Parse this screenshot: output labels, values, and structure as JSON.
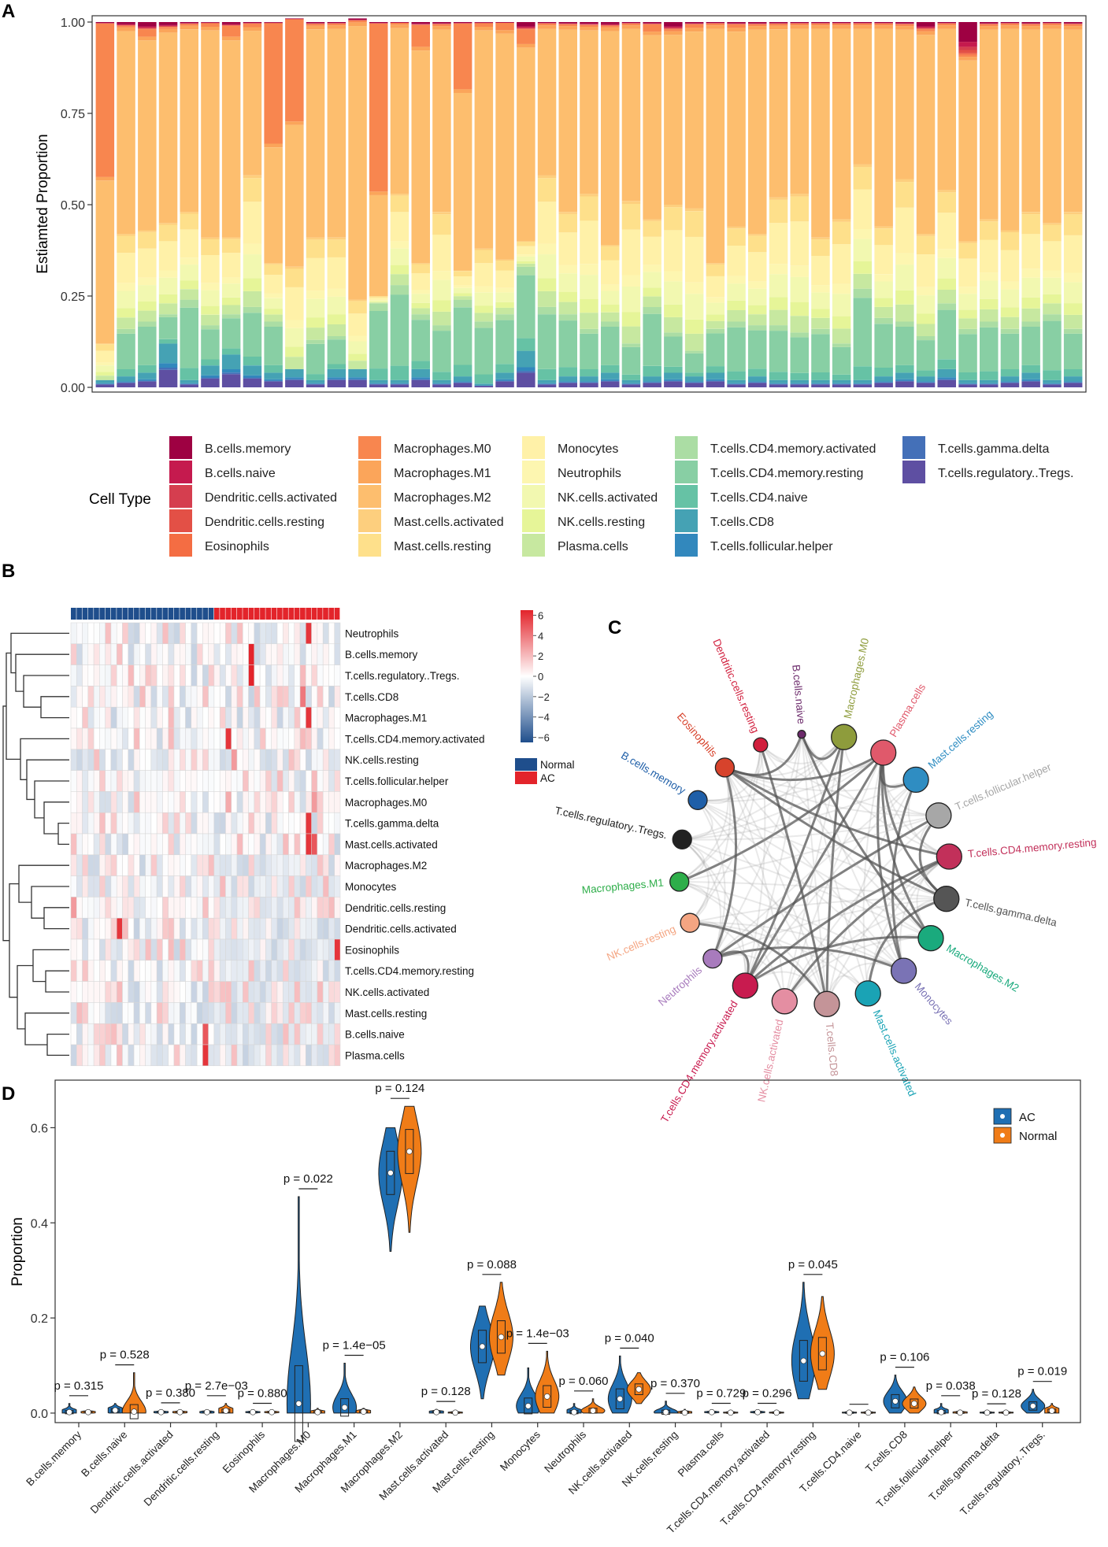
{
  "panel_labels": {
    "a": "A",
    "b": "B",
    "c": "C",
    "d": "D"
  },
  "chart_data": [
    {
      "panel": "A",
      "type": "stacked_bar",
      "ylabel": "Estiamted Proportion",
      "ylim": [
        0,
        1
      ],
      "yticks": [
        "0.00",
        "0.25",
        "0.50",
        "0.75",
        "1.00"
      ],
      "n_samples": 47,
      "legend_title": "Cell Type",
      "cell_types": [
        "B.cells.memory",
        "B.cells.naive",
        "Dendritic.cells.activated",
        "Dendritic.cells.resting",
        "Eosinophils",
        "Macrophages.M0",
        "Macrophages.M1",
        "Macrophages.M2",
        "Mast.cells.activated",
        "Mast.cells.resting",
        "Monocytes",
        "Neutrophils",
        "NK.cells.activated",
        "NK.cells.resting",
        "Plasma.cells",
        "T.cells.CD4.memory.activated",
        "T.cells.CD4.memory.resting",
        "T.cells.CD4.naive",
        "T.cells.CD8",
        "T.cells.follicular.helper",
        "T.cells.gamma.delta",
        "T.cells.regulatory..Tregs."
      ],
      "colors": [
        "#9e0142",
        "#c51a4e",
        "#d53e4f",
        "#e35046",
        "#f46d43",
        "#f8864f",
        "#fba55a",
        "#fdbe6e",
        "#fdcf7e",
        "#fee08b",
        "#fff1a8",
        "#fdf6b0",
        "#f2f8b0",
        "#e6f598",
        "#c7e8a0",
        "#abdda4",
        "#88cfa4",
        "#66c2a5",
        "#45a2b4",
        "#3288bd",
        "#4470b8",
        "#5e4fa2"
      ],
      "profile": {
        "top": [
          0.004,
          0.01,
          0.02,
          0.014,
          0.005,
          0.003,
          0.01,
          0.004,
          0.003,
          0.002,
          0.005,
          0.004,
          0.006,
          0.004,
          0.002,
          0.008,
          0.006,
          0.004,
          0.003,
          0.002,
          0.02,
          0.004,
          0.006,
          0.008,
          0.01,
          0.004,
          0.006,
          0.02,
          0.006,
          0.004,
          0.006,
          0.006,
          0.005,
          0.004,
          0.004,
          0.004,
          0.004,
          0.004,
          0.006,
          0.02,
          0.004,
          0.09,
          0.006,
          0.004,
          0.006,
          0.004,
          0.006
        ],
        "m0": [
          0.42,
          0.005,
          0.02,
          0.005,
          0.005,
          0.01,
          0.03,
          0.01,
          0.33,
          0.28,
          0.005,
          0.005,
          0.005,
          0.46,
          0.005,
          0.06,
          0.005,
          0.18,
          0.01,
          0.02,
          0.04,
          0.005,
          0.005,
          0.005,
          0.005,
          0.005,
          0.02,
          0.005,
          0.01,
          0.005,
          0.01,
          0.005,
          0.005,
          0.005,
          0.005,
          0.005,
          0.005,
          0.005,
          0.005,
          0.005,
          0.005,
          0.005,
          0.005,
          0.005,
          0.005,
          0.005,
          0.005
        ],
        "m2_end": [
          0.12,
          0.42,
          0.43,
          0.45,
          0.48,
          0.41,
          0.41,
          0.58,
          0.34,
          0.32,
          0.41,
          0.41,
          0.23,
          0.07,
          0.53,
          0.34,
          0.48,
          0.32,
          0.38,
          0.35,
          0.4,
          0.58,
          0.48,
          0.53,
          0.39,
          0.51,
          0.46,
          0.5,
          0.49,
          0.34,
          0.44,
          0.42,
          0.52,
          0.53,
          0.41,
          0.46,
          0.61,
          0.44,
          0.57,
          0.42,
          0.54,
          0.4,
          0.46,
          0.43,
          0.48,
          0.45,
          0.48
        ],
        "grn": [
          0.02,
          0.16,
          0.18,
          0.2,
          0.24,
          0.17,
          0.2,
          0.22,
          0.18,
          0.04,
          0.13,
          0.14,
          0.04,
          0.23,
          0.28,
          0.2,
          0.17,
          0.24,
          0.18,
          0.2,
          0.33,
          0.22,
          0.2,
          0.16,
          0.18,
          0.12,
          0.22,
          0.15,
          0.1,
          0.16,
          0.18,
          0.17,
          0.17,
          0.15,
          0.16,
          0.12,
          0.27,
          0.19,
          0.18,
          0.14,
          0.23,
          0.16,
          0.18,
          0.16,
          0.18,
          0.2,
          0.16
        ],
        "blue": [
          0.02,
          0.03,
          0.04,
          0.12,
          0.02,
          0.06,
          0.09,
          0.06,
          0.04,
          0.05,
          0.02,
          0.05,
          0.05,
          0.02,
          0.02,
          0.05,
          0.02,
          0.03,
          0.01,
          0.04,
          0.1,
          0.02,
          0.03,
          0.03,
          0.04,
          0.02,
          0.03,
          0.04,
          0.03,
          0.04,
          0.02,
          0.03,
          0.02,
          0.02,
          0.02,
          0.02,
          0.02,
          0.03,
          0.04,
          0.03,
          0.05,
          0.02,
          0.02,
          0.03,
          0.04,
          0.02,
          0.03
        ]
      }
    },
    {
      "panel": "B",
      "type": "heatmap",
      "rows": [
        "Neutrophils",
        "B.cells.memory",
        "T.cells.regulatory..Tregs.",
        "T.cells.CD8",
        "Macrophages.M1",
        "T.cells.CD4.memory.activated",
        "NK.cells.resting",
        "T.cells.follicular.helper",
        "Macrophages.M0",
        "T.cells.gamma.delta",
        "Mast.cells.activated",
        "Macrophages.M2",
        "Monocytes",
        "Dendritic.cells.resting",
        "Dendritic.cells.activated",
        "Eosinophils",
        "T.cells.CD4.memory.resting",
        "NK.cells.activated",
        "Mast.cells.resting",
        "B.cells.naive",
        "Plasma.cells"
      ],
      "n_cols": 47,
      "n_normal": 25,
      "scale_ticks": [
        "6",
        "4",
        "2",
        "0",
        "−2",
        "−4",
        "−6"
      ],
      "scale_range": [
        -6.5,
        6.5
      ],
      "groups": [
        {
          "name": "Normal",
          "color": "#1f4e8c"
        },
        {
          "name": "AC",
          "color": "#e3242b"
        }
      ],
      "hot_cells": [
        [
          0,
          41,
          6
        ],
        [
          1,
          31,
          7
        ],
        [
          2,
          31,
          7
        ],
        [
          3,
          40,
          4
        ],
        [
          4,
          41,
          6
        ],
        [
          5,
          27,
          6
        ],
        [
          6,
          28,
          3
        ],
        [
          8,
          27,
          2.5
        ],
        [
          8,
          42,
          3
        ],
        [
          9,
          41,
          6
        ],
        [
          10,
          41,
          6
        ],
        [
          10,
          42,
          5
        ],
        [
          13,
          0,
          3
        ],
        [
          14,
          8,
          6
        ],
        [
          15,
          46,
          6
        ],
        [
          19,
          23,
          5
        ],
        [
          20,
          23,
          6
        ]
      ]
    },
    {
      "panel": "C",
      "type": "network",
      "nodes": [
        {
          "name": "Macrophages.M0",
          "color": "#8e9c3c",
          "big": true
        },
        {
          "name": "Plasma.cells",
          "color": "#e0596b",
          "big": true
        },
        {
          "name": "Mast.cells.resting",
          "color": "#2f8dc2",
          "big": true
        },
        {
          "name": "T.cells.follicular.helper",
          "color": "#a7a7a7",
          "big": true
        },
        {
          "name": "T.cells.CD4.memory.resting",
          "color": "#c2305a",
          "big": true
        },
        {
          "name": "T.cells.gamma.delta",
          "color": "#555555",
          "big": true
        },
        {
          "name": "Macrophages.M2",
          "color": "#1aaa7d",
          "big": true
        },
        {
          "name": "Monocytes",
          "color": "#7a73b5",
          "big": true
        },
        {
          "name": "Mast.cells.activated",
          "color": "#1aa3b5",
          "big": true
        },
        {
          "name": "T.cells.CD8",
          "color": "#c49498",
          "big": true
        },
        {
          "name": "NK.cells.activated",
          "color": "#e48ea2",
          "big": true
        },
        {
          "name": "T.cells.CD4.memory.activated",
          "color": "#c81b4f",
          "big": true
        },
        {
          "name": "Neutrophils",
          "color": "#a87bbd",
          "big": false
        },
        {
          "name": "NK.cells.resting",
          "color": "#f4a582",
          "big": false
        },
        {
          "name": "Macrophages.M1",
          "color": "#2eae4a",
          "big": false
        },
        {
          "name": "T.cells.regulatory..Tregs.",
          "color": "#222222",
          "big": false
        },
        {
          "name": "B.cells.memory",
          "color": "#1f5fa8",
          "big": false
        },
        {
          "name": "Eosinophils",
          "color": "#d7432c",
          "big": false
        },
        {
          "name": "Dendritic.cells.resting",
          "color": "#d11f3d",
          "big": false
        },
        {
          "name": "B.cells.naive",
          "color": "#6c2a6b",
          "big": false
        }
      ]
    },
    {
      "panel": "D",
      "type": "violin",
      "ylabel": "Proportion",
      "ylim": [
        0,
        0.7
      ],
      "yticks": [
        "0.0",
        "0.2",
        "0.4",
        "0.6"
      ],
      "legend": [
        {
          "name": "AC",
          "color": "#1f6fb3"
        },
        {
          "name": "Normal",
          "color": "#f07c17"
        }
      ],
      "categories": [
        {
          "name": "B.cells.memory",
          "p": "p = 0.315",
          "ac": [
            0,
            0.002,
            0.02
          ],
          "nl": [
            0,
            0.002,
            0.006
          ]
        },
        {
          "name": "B.cells.naive",
          "p": "p = 0.528",
          "ac": [
            0,
            0.006,
            0.02
          ],
          "nl": [
            0,
            0.003,
            0.085
          ]
        },
        {
          "name": "Dendritic.cells.activated",
          "p": "p = 0.380",
          "ac": [
            0,
            0.002,
            0.005
          ],
          "nl": [
            0,
            0.002,
            0.005
          ]
        },
        {
          "name": "Dendritic.cells.resting",
          "p": "p = 2.7e−03",
          "ac": [
            0,
            0.002,
            0.006
          ],
          "nl": [
            0,
            0.005,
            0.02
          ]
        },
        {
          "name": "Eosinophils",
          "p": "p = 0.880",
          "ac": [
            0,
            0.002,
            0.004
          ],
          "nl": [
            0,
            0.002,
            0.004
          ]
        },
        {
          "name": "Macrophages.M0",
          "p": "p = 0.022",
          "ac": [
            0,
            0.02,
            0.455
          ],
          "nl": [
            0,
            0.002,
            0.01
          ]
        },
        {
          "name": "Macrophages.M1",
          "p": "p = 1.4e−05",
          "ac": [
            0,
            0.012,
            0.105
          ],
          "nl": [
            0,
            0.003,
            0.01
          ]
        },
        {
          "name": "Macrophages.M2",
          "p": "p = 0.124",
          "ac": [
            0.34,
            0.505,
            0.6
          ],
          "nl": [
            0.38,
            0.55,
            0.645
          ]
        },
        {
          "name": "Mast.cells.activated",
          "p": "p = 0.128",
          "ac": [
            0,
            0.002,
            0.008
          ],
          "nl": [
            0,
            0.001,
            0.004
          ]
        },
        {
          "name": "Mast.cells.resting",
          "p": "p = 0.088",
          "ac": [
            0.03,
            0.14,
            0.225
          ],
          "nl": [
            0.08,
            0.16,
            0.275
          ]
        },
        {
          "name": "Monocytes",
          "p": "p = 1.4e−03",
          "ac": [
            0,
            0.015,
            0.095
          ],
          "nl": [
            0,
            0.035,
            0.13
          ]
        },
        {
          "name": "Neutrophils",
          "p": "p = 0.060",
          "ac": [
            0,
            0.002,
            0.02
          ],
          "nl": [
            0,
            0.005,
            0.03
          ]
        },
        {
          "name": "NK.cells.activated",
          "p": "p = 0.040",
          "ac": [
            0,
            0.03,
            0.12
          ],
          "nl": [
            0.02,
            0.05,
            0.085
          ]
        },
        {
          "name": "NK.cells.resting",
          "p": "p = 0.370",
          "ac": [
            0,
            0.002,
            0.025
          ],
          "nl": [
            0,
            0.001,
            0.008
          ]
        },
        {
          "name": "Plasma.cells",
          "p": "p = 0.729",
          "ac": [
            0,
            0.002,
            0.004
          ],
          "nl": [
            0,
            0.001,
            0.003
          ]
        },
        {
          "name": "T.cells.CD4.memory.activated",
          "p": "p = 0.296",
          "ac": [
            0,
            0.002,
            0.004
          ],
          "nl": [
            0,
            0.001,
            0.003
          ]
        },
        {
          "name": "T.cells.CD4.memory.resting",
          "p": "p = 0.045",
          "ac": [
            0.03,
            0.11,
            0.275
          ],
          "nl": [
            0.05,
            0.125,
            0.245
          ]
        },
        {
          "name": "T.cells.CD4.naive",
          "p": "",
          "ac": [
            0,
            0.001,
            0.002
          ],
          "nl": [
            0,
            0.001,
            0.002
          ]
        },
        {
          "name": "T.cells.CD8",
          "p": "p = 0.106",
          "ac": [
            0,
            0.025,
            0.08
          ],
          "nl": [
            0,
            0.02,
            0.055
          ]
        },
        {
          "name": "T.cells.follicular.helper",
          "p": "p = 0.038",
          "ac": [
            0,
            0.002,
            0.02
          ],
          "nl": [
            0,
            0.001,
            0.006
          ]
        },
        {
          "name": "T.cells.gamma.delta",
          "p": "p = 0.128",
          "ac": [
            0,
            0.001,
            0.003
          ],
          "nl": [
            0,
            0.001,
            0.002
          ]
        },
        {
          "name": "T.cells.regulatory..Tregs.",
          "p": "p = 0.019",
          "ac": [
            0,
            0.015,
            0.05
          ],
          "nl": [
            0,
            0.005,
            0.02
          ]
        }
      ]
    }
  ]
}
